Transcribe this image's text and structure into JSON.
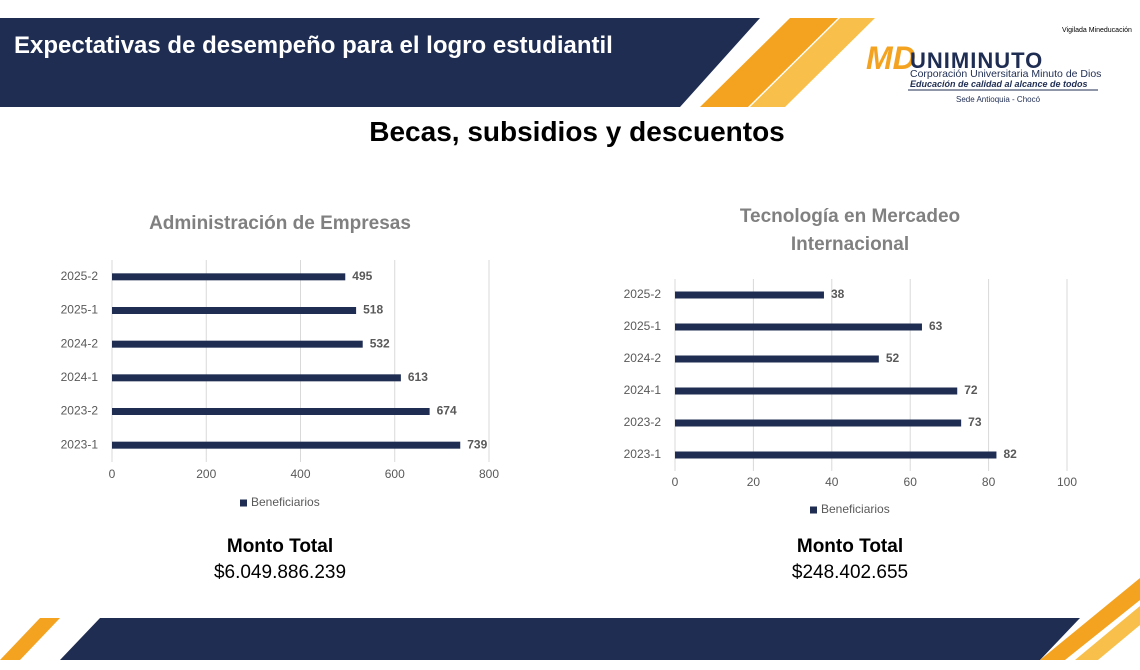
{
  "header": {
    "title": "Expectativas de desempeño para el logro estudiantil"
  },
  "logo": {
    "vigilada": "Vigilada Mineducación",
    "icon": "MD",
    "name": "UNIMINUTO",
    "institution": "Corporación Universitaria Minuto de Dios",
    "motto": "Educación de calidad al alcance de todos",
    "sede": "Sede Antioquia - Chocó"
  },
  "heading": "Becas, subsidios y descuentos",
  "chart_data": [
    {
      "type": "hbar",
      "title": "Administración de Empresas",
      "categories": [
        "2025-2",
        "2025-1",
        "2024-2",
        "2024-1",
        "2023-2",
        "2023-1"
      ],
      "series": [
        {
          "name": "Beneficiarios",
          "color": "#1f2d52",
          "values": [
            495,
            518,
            532,
            613,
            674,
            739
          ]
        }
      ],
      "xlim": [
        0,
        800
      ],
      "xticks": [
        0,
        200,
        400,
        600,
        800
      ],
      "grid": true,
      "legend": "bottom",
      "total": {
        "label": "Monto Total",
        "value": "$6.049.886.239"
      }
    },
    {
      "type": "hbar",
      "title": "Tecnología en Mercadeo Internacional",
      "categories": [
        "2025-2",
        "2025-1",
        "2024-2",
        "2024-1",
        "2023-2",
        "2023-1"
      ],
      "series": [
        {
          "name": "Beneficiarios",
          "color": "#1f2d52",
          "values": [
            38,
            63,
            52,
            72,
            73,
            82
          ]
        }
      ],
      "xlim": [
        0,
        100
      ],
      "xticks": [
        0,
        20,
        40,
        60,
        80,
        100
      ],
      "grid": true,
      "legend": "bottom",
      "total": {
        "label": "Monto Total",
        "value": "$248.402.655"
      }
    }
  ]
}
